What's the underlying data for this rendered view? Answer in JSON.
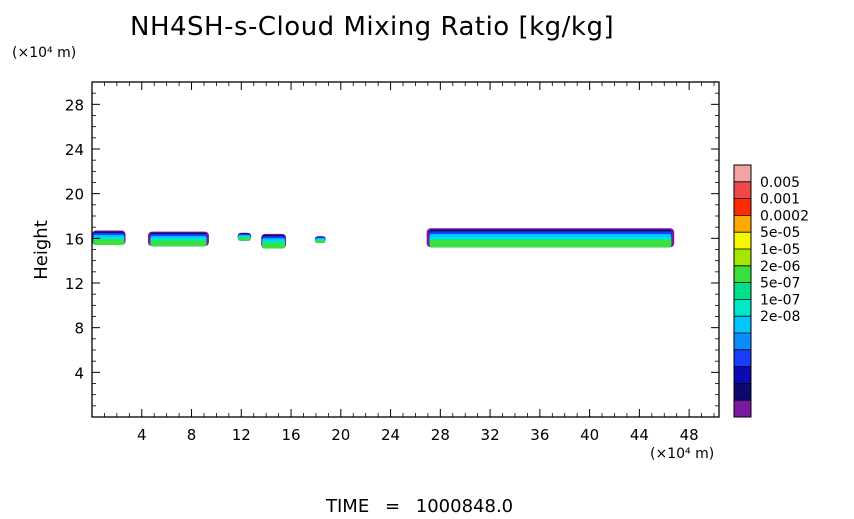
{
  "chart_data": {
    "type": "heatmap",
    "title": "NH4SH-s-Cloud Mixing Ratio [kg/kg]",
    "ylabel": "Height",
    "x_unit": "(×10⁴ m)",
    "y_unit": "(×10⁴ m)",
    "xlim": [
      0,
      50.4
    ],
    "ylim": [
      0,
      30
    ],
    "x_ticks": [
      "4",
      "8",
      "12",
      "16",
      "20",
      "24",
      "28",
      "32",
      "36",
      "40",
      "44",
      "48"
    ],
    "y_ticks": [
      "4",
      "8",
      "12",
      "16",
      "20",
      "24",
      "28"
    ],
    "colorbar": {
      "labels": [
        "0.005",
        "0.001",
        "0.0002",
        "5e-05",
        "1e-05",
        "2e-06",
        "5e-07",
        "1e-07",
        "2e-08"
      ],
      "colors": [
        "#f4a3a3",
        "#ef4848",
        "#ff2a00",
        "#ffaa00",
        "#f7f700",
        "#a6e600",
        "#3ce03c",
        "#00e08c",
        "#00e8c8",
        "#00c8ff",
        "#0a8cff",
        "#1a3cff",
        "#0a0ab0",
        "#0a0a6e",
        "#7a1aa0"
      ]
    },
    "cloud_patches": [
      {
        "x0": 0.0,
        "x1": 2.7,
        "y0": 15.4,
        "y1": 16.7
      },
      {
        "x0": 4.5,
        "x1": 9.4,
        "y0": 15.3,
        "y1": 16.6
      },
      {
        "x0": 11.7,
        "x1": 12.8,
        "y0": 15.8,
        "y1": 16.5
      },
      {
        "x0": 13.6,
        "x1": 15.6,
        "y0": 15.1,
        "y1": 16.4
      },
      {
        "x0": 17.9,
        "x1": 18.8,
        "y0": 15.6,
        "y1": 16.2
      },
      {
        "x0": 26.9,
        "x1": 46.8,
        "y0": 15.2,
        "y1": 16.9
      }
    ]
  },
  "time_label": "TIME",
  "time_eq": "=",
  "time_value": "1000848.0"
}
